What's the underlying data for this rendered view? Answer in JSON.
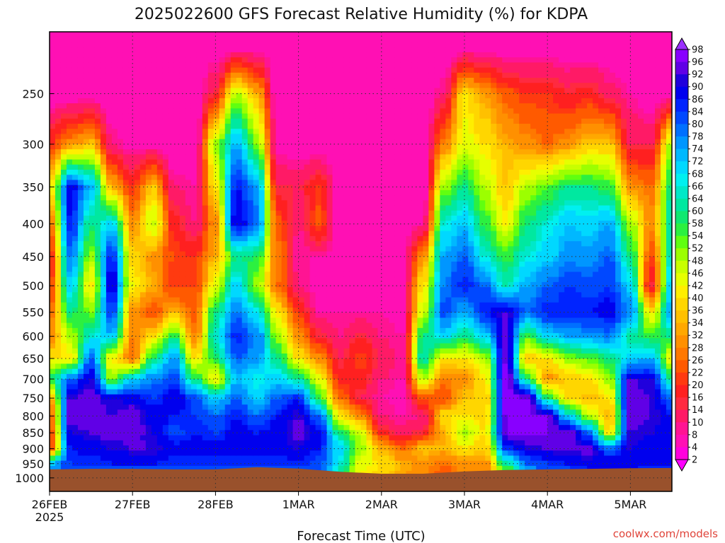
{
  "chart_data": {
    "type": "heatmap",
    "title": "2025022600 GFS Forecast Relative Humidity (%) for KDPA",
    "xlabel": "Forecast Time (UTC)",
    "ylabel": "",
    "x_ticks": [
      "26FEB",
      "27FEB",
      "28FEB",
      "1MAR",
      "2MAR",
      "3MAR",
      "4MAR",
      "5MAR"
    ],
    "x_year_label": "2025",
    "x_range_days": [
      0,
      7.5
    ],
    "y_ticks": [
      250,
      300,
      350,
      400,
      450,
      500,
      550,
      600,
      650,
      700,
      750,
      800,
      850,
      900,
      950,
      1000
    ],
    "y_range_hpa": [
      200,
      1050
    ],
    "y_scale": "log",
    "y_reversed": true,
    "colorbar_levels": [
      2,
      4,
      8,
      10,
      14,
      16,
      20,
      22,
      26,
      28,
      32,
      34,
      36,
      40,
      42,
      46,
      48,
      52,
      54,
      58,
      60,
      64,
      66,
      68,
      72,
      74,
      78,
      80,
      84,
      86,
      90,
      92,
      96,
      98
    ],
    "colorbar_labels": [
      "98",
      "96",
      "92",
      "90",
      "86",
      "84",
      "80",
      "78",
      "74",
      "72",
      "68",
      "66",
      "64",
      "60",
      "58",
      "54",
      "52",
      "48",
      "46",
      "42",
      "40",
      "36",
      "34",
      "32",
      "28",
      "26",
      "22",
      "20",
      "16",
      "14",
      "10",
      "8",
      "4",
      "2"
    ],
    "colorbar_colors": [
      "#ff00ff",
      "#ff00dd",
      "#ff10b4",
      "#ff1493",
      "#ff1a66",
      "#ff2a40",
      "#ff2020",
      "#ff3a10",
      "#ff5a00",
      "#ff7800",
      "#ff9000",
      "#ffa800",
      "#ffc000",
      "#ffd600",
      "#ffee00",
      "#e6ff00",
      "#c8ff00",
      "#9cff00",
      "#60ff10",
      "#2cf040",
      "#10e870",
      "#00e8a0",
      "#00e8c8",
      "#00f0f0",
      "#00d8ff",
      "#00b8ff",
      "#0096ff",
      "#0070ff",
      "#0048ff",
      "#0024ff",
      "#0000ee",
      "#2000dd",
      "#6000e6",
      "#8800ff",
      "#9b30ff"
    ],
    "ground_color": "#99512c",
    "grid": true,
    "legend": "colorbar-right",
    "rh_samples": [
      {
        "day": 0.0,
        "rh": {
          "250": 4,
          "300": 20,
          "350": 40,
          "400": 26,
          "450": 18,
          "500": 20,
          "550": 26,
          "600": 28,
          "650": 40,
          "700": 60,
          "750": 32,
          "800": 24,
          "850": 22,
          "900": 20,
          "950": 72,
          "1000": 80
        }
      },
      {
        "day": 0.25,
        "rh": {
          "250": 4,
          "300": 30,
          "350": 88,
          "400": 86,
          "450": 78,
          "500": 70,
          "550": 60,
          "600": 48,
          "650": 40,
          "700": 80,
          "750": 92,
          "800": 94,
          "850": 90,
          "900": 86,
          "950": 84,
          "1000": 80
        }
      },
      {
        "day": 0.5,
        "rh": {
          "250": 4,
          "300": 36,
          "350": 74,
          "400": 60,
          "450": 50,
          "500": 40,
          "550": 52,
          "600": 66,
          "650": 80,
          "700": 90,
          "750": 94,
          "800": 96,
          "850": 92,
          "900": 88,
          "950": 84,
          "1000": 80
        }
      },
      {
        "day": 0.75,
        "rh": {
          "250": 4,
          "300": 10,
          "350": 34,
          "400": 70,
          "450": 86,
          "500": 90,
          "550": 84,
          "600": 72,
          "650": 40,
          "700": 50,
          "750": 90,
          "800": 92,
          "850": 94,
          "900": 90,
          "950": 86,
          "1000": 80
        }
      },
      {
        "day": 1.0,
        "rh": {
          "250": 4,
          "300": 6,
          "350": 20,
          "400": 30,
          "450": 38,
          "500": 42,
          "550": 30,
          "600": 28,
          "650": 26,
          "700": 70,
          "750": 88,
          "800": 96,
          "850": 94,
          "900": 92,
          "950": 86,
          "1000": 80
        }
      },
      {
        "day": 1.25,
        "rh": {
          "250": 4,
          "300": 6,
          "350": 36,
          "400": 48,
          "450": 30,
          "500": 34,
          "550": 22,
          "600": 40,
          "650": 60,
          "700": 78,
          "750": 84,
          "800": 88,
          "850": 90,
          "900": 92,
          "950": 86,
          "1000": 80
        }
      },
      {
        "day": 1.5,
        "rh": {
          "250": 4,
          "300": 4,
          "350": 10,
          "400": 18,
          "450": 22,
          "500": 20,
          "550": 34,
          "600": 58,
          "650": 76,
          "700": 82,
          "750": 90,
          "800": 86,
          "850": 82,
          "900": 88,
          "950": 84,
          "1000": 80
        }
      },
      {
        "day": 1.75,
        "rh": {
          "250": 4,
          "300": 4,
          "350": 8,
          "400": 10,
          "450": 20,
          "500": 22,
          "550": 24,
          "600": 28,
          "650": 40,
          "700": 60,
          "750": 82,
          "800": 84,
          "850": 86,
          "900": 88,
          "950": 84,
          "1000": 80
        }
      },
      {
        "day": 2.0,
        "rh": {
          "250": 16,
          "300": 50,
          "350": 40,
          "400": 30,
          "450": 34,
          "500": 44,
          "550": 60,
          "600": 66,
          "650": 58,
          "700": 40,
          "750": 70,
          "800": 80,
          "850": 84,
          "900": 88,
          "950": 84,
          "1000": 80
        }
      },
      {
        "day": 2.25,
        "rh": {
          "250": 48,
          "300": 74,
          "350": 86,
          "400": 90,
          "450": 60,
          "500": 70,
          "550": 78,
          "600": 86,
          "650": 80,
          "700": 72,
          "750": 80,
          "800": 86,
          "850": 88,
          "900": 88,
          "950": 84,
          "1000": 80
        }
      },
      {
        "day": 2.5,
        "rh": {
          "250": 34,
          "300": 52,
          "350": 76,
          "400": 80,
          "450": 58,
          "500": 50,
          "550": 68,
          "600": 78,
          "650": 76,
          "700": 66,
          "750": 70,
          "800": 80,
          "850": 86,
          "900": 88,
          "950": 84,
          "1000": 80
        }
      },
      {
        "day": 2.75,
        "rh": {
          "250": 4,
          "300": 6,
          "350": 14,
          "400": 24,
          "450": 28,
          "500": 26,
          "550": 40,
          "600": 50,
          "650": 60,
          "700": 70,
          "750": 80,
          "800": 86,
          "850": 88,
          "900": 88,
          "950": 84,
          "1000": 80
        }
      },
      {
        "day": 3.0,
        "rh": {
          "250": 4,
          "300": 4,
          "350": 14,
          "400": 10,
          "450": 8,
          "500": 10,
          "550": 20,
          "600": 30,
          "650": 40,
          "700": 62,
          "750": 86,
          "800": 92,
          "850": 94,
          "900": 90,
          "950": 86,
          "1000": 80
        }
      },
      {
        "day": 3.25,
        "rh": {
          "250": 4,
          "300": 4,
          "350": 20,
          "400": 24,
          "450": 8,
          "500": 6,
          "550": 8,
          "600": 16,
          "650": 30,
          "700": 44,
          "750": 56,
          "800": 80,
          "850": 88,
          "900": 86,
          "950": 82,
          "1000": 80
        }
      },
      {
        "day": 3.5,
        "rh": {
          "250": 4,
          "300": 4,
          "350": 4,
          "400": 4,
          "450": 6,
          "500": 6,
          "550": 8,
          "600": 10,
          "650": 14,
          "700": 18,
          "750": 26,
          "800": 40,
          "850": 60,
          "900": 70,
          "950": 66,
          "1000": 60
        }
      },
      {
        "day": 3.75,
        "rh": {
          "250": 4,
          "300": 4,
          "350": 4,
          "400": 4,
          "450": 6,
          "500": 6,
          "550": 8,
          "600": 16,
          "650": 22,
          "700": 18,
          "750": 14,
          "800": 30,
          "850": 46,
          "900": 50,
          "950": 44,
          "1000": 40
        }
      },
      {
        "day": 4.0,
        "rh": {
          "250": 4,
          "300": 4,
          "350": 4,
          "400": 4,
          "450": 6,
          "500": 8,
          "550": 8,
          "600": 10,
          "650": 14,
          "700": 10,
          "750": 8,
          "800": 10,
          "850": 18,
          "900": 34,
          "950": 40,
          "1000": 38
        }
      },
      {
        "day": 4.25,
        "rh": {
          "250": 4,
          "300": 4,
          "350": 4,
          "400": 4,
          "450": 6,
          "500": 6,
          "550": 6,
          "600": 8,
          "650": 8,
          "700": 8,
          "750": 6,
          "800": 8,
          "850": 12,
          "900": 26,
          "950": 34,
          "1000": 32
        }
      },
      {
        "day": 4.5,
        "rh": {
          "250": 4,
          "300": 4,
          "350": 4,
          "400": 8,
          "450": 30,
          "500": 40,
          "550": 46,
          "600": 60,
          "650": 64,
          "700": 48,
          "750": 24,
          "800": 10,
          "850": 16,
          "900": 36,
          "950": 30,
          "1000": 28
        }
      },
      {
        "day": 4.75,
        "rh": {
          "250": 10,
          "300": 28,
          "350": 50,
          "400": 66,
          "450": 74,
          "500": 78,
          "550": 82,
          "600": 70,
          "650": 40,
          "700": 28,
          "750": 22,
          "800": 40,
          "850": 34,
          "900": 34,
          "950": 26,
          "1000": 24
        }
      },
      {
        "day": 5.0,
        "rh": {
          "250": 40,
          "300": 44,
          "350": 60,
          "400": 72,
          "450": 80,
          "500": 86,
          "550": 74,
          "600": 60,
          "650": 40,
          "700": 30,
          "750": 36,
          "800": 40,
          "850": 50,
          "900": 40,
          "950": 30,
          "1000": 28
        }
      },
      {
        "day": 5.25,
        "rh": {
          "250": 32,
          "300": 40,
          "350": 48,
          "400": 56,
          "450": 66,
          "500": 80,
          "550": 86,
          "600": 70,
          "650": 48,
          "700": 40,
          "750": 36,
          "800": 38,
          "850": 40,
          "900": 36,
          "950": 30,
          "1000": 28
        }
      },
      {
        "day": 5.5,
        "rh": {
          "250": 24,
          "300": 34,
          "350": 36,
          "400": 42,
          "450": 56,
          "500": 64,
          "550": 92,
          "600": 94,
          "650": 96,
          "700": 98,
          "750": 98,
          "800": 96,
          "850": 96,
          "900": 84,
          "950": 62,
          "1000": 40
        }
      },
      {
        "day": 5.75,
        "rh": {
          "250": 20,
          "300": 30,
          "350": 48,
          "400": 60,
          "450": 66,
          "500": 74,
          "550": 80,
          "600": 54,
          "650": 36,
          "700": 60,
          "750": 98,
          "800": 98,
          "850": 96,
          "900": 90,
          "950": 80,
          "1000": 70
        }
      },
      {
        "day": 6.0,
        "rh": {
          "250": 20,
          "300": 26,
          "350": 54,
          "400": 66,
          "450": 70,
          "500": 80,
          "550": 86,
          "600": 70,
          "650": 40,
          "700": 30,
          "750": 60,
          "800": 96,
          "850": 96,
          "900": 92,
          "950": 84,
          "1000": 78
        }
      },
      {
        "day": 6.25,
        "rh": {
          "250": 16,
          "300": 30,
          "350": 60,
          "400": 72,
          "450": 76,
          "500": 84,
          "550": 86,
          "600": 74,
          "650": 50,
          "700": 36,
          "750": 40,
          "800": 70,
          "850": 96,
          "900": 94,
          "950": 86,
          "1000": 80
        }
      },
      {
        "day": 6.5,
        "rh": {
          "250": 18,
          "300": 36,
          "350": 60,
          "400": 70,
          "450": 76,
          "500": 82,
          "550": 86,
          "600": 76,
          "650": 54,
          "700": 40,
          "750": 34,
          "800": 48,
          "850": 80,
          "900": 94,
          "950": 88,
          "1000": 82
        }
      },
      {
        "day": 6.75,
        "rh": {
          "250": 12,
          "300": 36,
          "350": 56,
          "400": 74,
          "450": 80,
          "500": 84,
          "550": 88,
          "600": 78,
          "650": 60,
          "700": 50,
          "750": 40,
          "800": 34,
          "850": 40,
          "900": 80,
          "950": 90,
          "1000": 86
        }
      },
      {
        "day": 7.0,
        "rh": {
          "250": 8,
          "300": 14,
          "350": 30,
          "400": 50,
          "450": 60,
          "500": 70,
          "550": 78,
          "600": 62,
          "650": 70,
          "700": 92,
          "750": 94,
          "800": 94,
          "850": 92,
          "900": 90,
          "950": 88,
          "1000": 84
        }
      },
      {
        "day": 7.25,
        "rh": {
          "250": 4,
          "300": 14,
          "350": 26,
          "400": 30,
          "450": 22,
          "500": 14,
          "550": 40,
          "600": 56,
          "650": 74,
          "700": 90,
          "750": 92,
          "800": 92,
          "850": 90,
          "900": 88,
          "950": 86,
          "1000": 84
        }
      },
      {
        "day": 7.5,
        "rh": {
          "250": 4,
          "300": 50,
          "350": 60,
          "400": 64,
          "450": 66,
          "500": 72,
          "550": 76,
          "600": 60,
          "650": 40,
          "700": 60,
          "750": 80,
          "800": 86,
          "850": 88,
          "900": 88,
          "950": 86,
          "1000": 84
        }
      }
    ],
    "surface_pressure_hpa": [
      {
        "day": 0.0,
        "p": 970
      },
      {
        "day": 0.5,
        "p": 968
      },
      {
        "day": 1.0,
        "p": 968
      },
      {
        "day": 1.5,
        "p": 970
      },
      {
        "day": 2.0,
        "p": 970
      },
      {
        "day": 2.5,
        "p": 962
      },
      {
        "day": 3.0,
        "p": 967
      },
      {
        "day": 3.5,
        "p": 978
      },
      {
        "day": 4.0,
        "p": 985
      },
      {
        "day": 4.5,
        "p": 985
      },
      {
        "day": 5.0,
        "p": 977
      },
      {
        "day": 5.5,
        "p": 972
      },
      {
        "day": 6.0,
        "p": 970
      },
      {
        "day": 6.5,
        "p": 968
      },
      {
        "day": 7.0,
        "p": 966
      },
      {
        "day": 7.5,
        "p": 965
      }
    ]
  },
  "watermark": "coolwx.com/models"
}
